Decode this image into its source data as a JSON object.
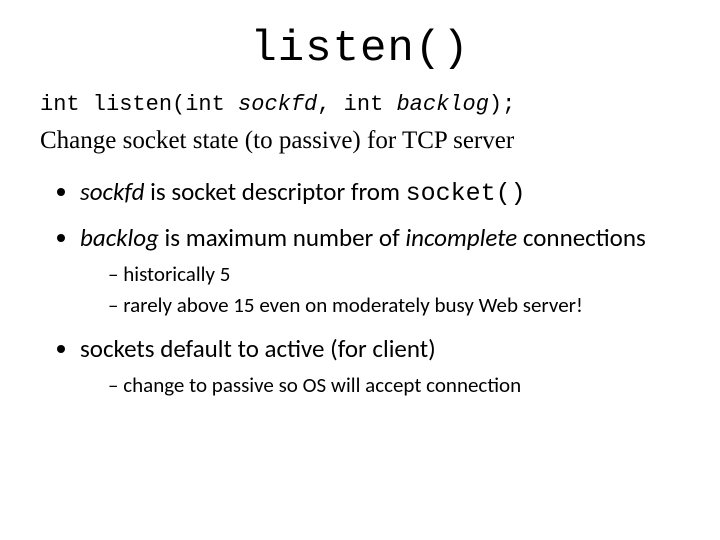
{
  "title": "listen()",
  "signature": {
    "p1": "int listen(int ",
    "arg1": "sockfd",
    "p2": ", int ",
    "arg2": "backlog",
    "p3": ");"
  },
  "description": "Change socket state (to passive) for TCP server",
  "bullets": {
    "b1": {
      "arg": "sockfd",
      "text_mid": " is socket descriptor from ",
      "code": "socket()"
    },
    "b2": {
      "arg": "backlog",
      "text_mid": " is maximum number of ",
      "ital": "incomplete",
      "text_end": " connections",
      "sub": {
        "s1": "historically 5",
        "s2": "rarely above 15 even on moderately busy Web server!"
      }
    },
    "b3": {
      "text": "sockets default to active (for client)",
      "sub": {
        "s1": "change to passive so OS will accept connection"
      }
    }
  },
  "colors": {
    "background": "#ffffff",
    "text": "#000000"
  },
  "fonts": {
    "title_family": "Courier New",
    "mono_family": "Courier New",
    "body_family": "Calibri",
    "serif_family": "Georgia"
  }
}
